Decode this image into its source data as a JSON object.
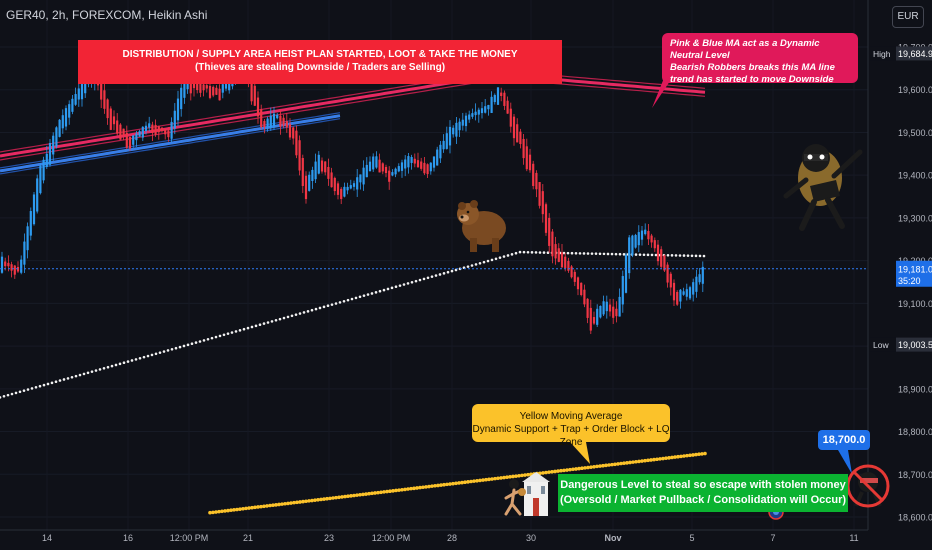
{
  "header": {
    "symbol": "GER40, 2h, FOREXCOM, Heikin Ashi",
    "currency": "EUR"
  },
  "chart_data": {
    "type": "candlestick",
    "y_axis": {
      "min": 18600,
      "max": 19700,
      "tick_labels": [
        "19,700.0",
        "19,600.0",
        "19,500.0",
        "19,400.0",
        "19,300.0",
        "19,200.0",
        "19,100.0",
        "19,000.0",
        "18,900.0",
        "18,800.0",
        "18,700.0",
        "18,600.0"
      ],
      "tick_values": [
        19700,
        19600,
        19500,
        19400,
        19300,
        19200,
        19100,
        19000,
        18900,
        18800,
        18700,
        18600
      ]
    },
    "x_axis": {
      "labels": [
        "14",
        "16",
        "12:00 PM",
        "21",
        "23",
        "12:00 PM",
        "28",
        "30",
        "Nov",
        "5",
        "7",
        "11"
      ]
    },
    "price_markers": [
      {
        "label": "High",
        "value": "19,684.9",
        "price": 19684.9,
        "color": "#2a2e39"
      },
      {
        "label": "",
        "value": "19,181.0",
        "subvalue": "35:20",
        "price": 19181,
        "color": "#1e6fe8"
      },
      {
        "label": "Low",
        "value": "19,003.5",
        "price": 19003.5,
        "color": "#2a2e39"
      }
    ],
    "current_price": 19181.0,
    "series": [
      {
        "name": "",
        "kind": "pink-ma",
        "color": "#f2335f"
      },
      {
        "name": "",
        "kind": "blue-ma",
        "color": "#2e7cf6"
      },
      {
        "name": "",
        "kind": "white-ma",
        "color": "#ffffff"
      },
      {
        "name": "",
        "kind": "yellow-ma",
        "color": "#fbc22a"
      }
    ]
  },
  "annotations": {
    "red_box": {
      "line1": "DISTRIBUTION / SUPPLY AREA HEIST PLAN STARTED, LOOT & TAKE THE MONEY",
      "line2": "(Thieves are stealing Downside / Traders are Selling)"
    },
    "pink_box": {
      "line1": "Pink & Blue MA act as a Dynamic Neutral Level",
      "line2": "Bearish Robbers breaks this MA line",
      "line3": "trend has started to move Downside"
    },
    "yellow_box": {
      "line1": "Yellow Moving Average",
      "line2": "Dynamic Support + Trap + Order Block + LQ Zone"
    },
    "green_box": {
      "line1": "Dangerous Level to steal so escape with stolen money",
      "line2": "(Oversold / Market Pullback / Consolidation will Occur)"
    },
    "price_tag": "18,700.0"
  },
  "icons": [
    "bear-icon",
    "robber-icon",
    "bank-icon",
    "no-entry-icon",
    "tradingview-logo"
  ]
}
